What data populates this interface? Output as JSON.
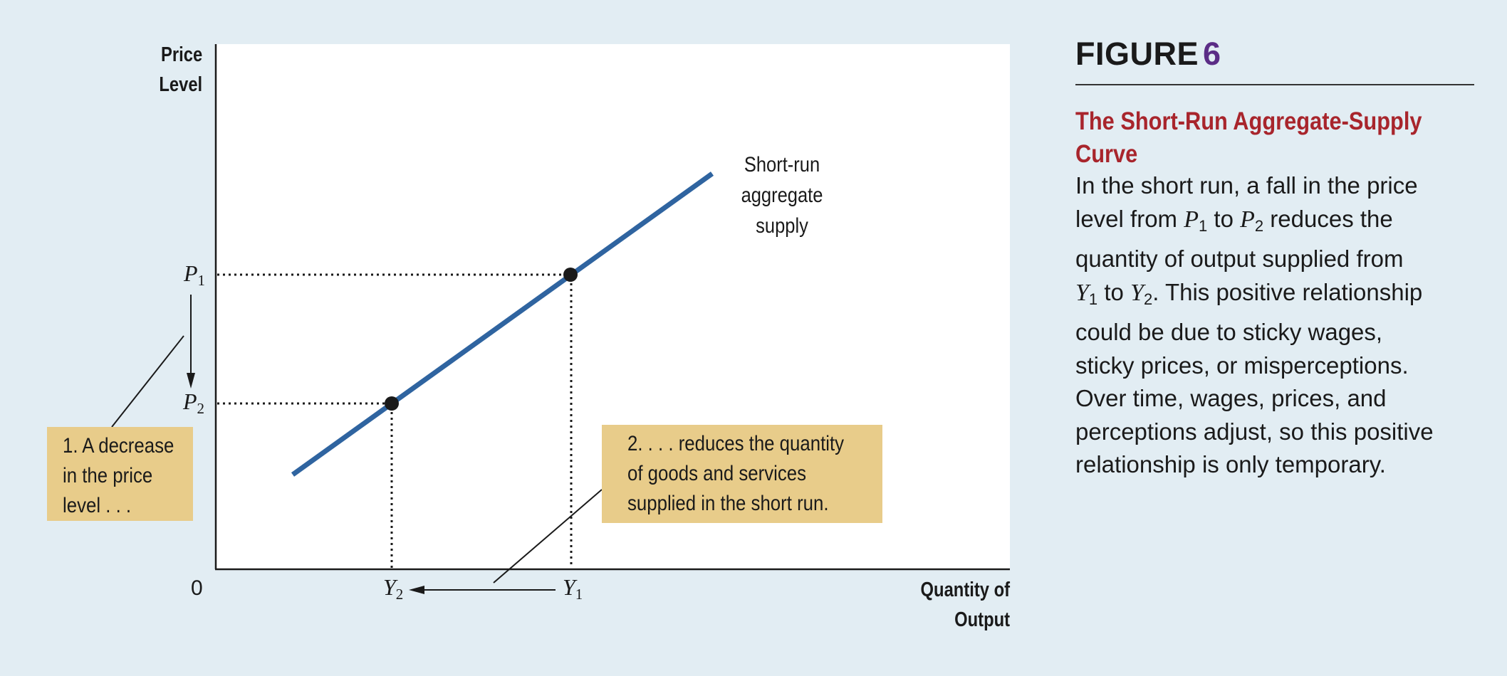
{
  "axes": {
    "y_title_line1": "Price",
    "y_title_line2": "Level",
    "x_title_line1": "Quantity of",
    "x_title_line2": "Output",
    "origin": "0"
  },
  "points": {
    "P1_var": "P",
    "P1_sub": "1",
    "P2_var": "P",
    "P2_sub": "2",
    "Y1_var": "Y",
    "Y1_sub": "1",
    "Y2_var": "Y",
    "Y2_sub": "2"
  },
  "curve_label": {
    "line1": "Short-run",
    "line2": "aggregate",
    "line3": "supply"
  },
  "callout_1": {
    "line1": "1. A decrease",
    "line2": "in the price",
    "line3": "level . . ."
  },
  "callout_2": {
    "line1": "2. . . . reduces the quantity",
    "line2": "of goods and services",
    "line3": "supplied in the short run."
  },
  "figure": {
    "label": "FIGURE",
    "number": "6",
    "title_line1": "The Short-Run Aggregate-Supply",
    "title_line2": "Curve",
    "caption": {
      "l1": "In the short run, a fall in the price",
      "l2_a": "level from ",
      "l2_p": "P",
      "l2_p_sub": "1",
      "l2_b": " to ",
      "l2_p2": "P",
      "l2_p2_sub": "2",
      "l2_c": " reduces the",
      "l3": "quantity of output supplied from",
      "l4_y1": "Y",
      "l4_y1_sub": "1",
      "l4_b": " to ",
      "l4_y2": "Y",
      "l4_y2_sub": "2",
      "l4_c": ". This positive relationship",
      "l5": "could be due to sticky wages,",
      "l6": "sticky prices, or misperceptions.",
      "l7": "Over time, wages, prices, and",
      "l8": "perceptions adjust, so this positive",
      "l9": "relationship is only temporary."
    }
  },
  "colors": {
    "curve": "#2f64a0",
    "callout": "#e8cc8a",
    "background": "#e2edf3",
    "title": "#a8252c",
    "figure_number": "#5b2d86"
  }
}
